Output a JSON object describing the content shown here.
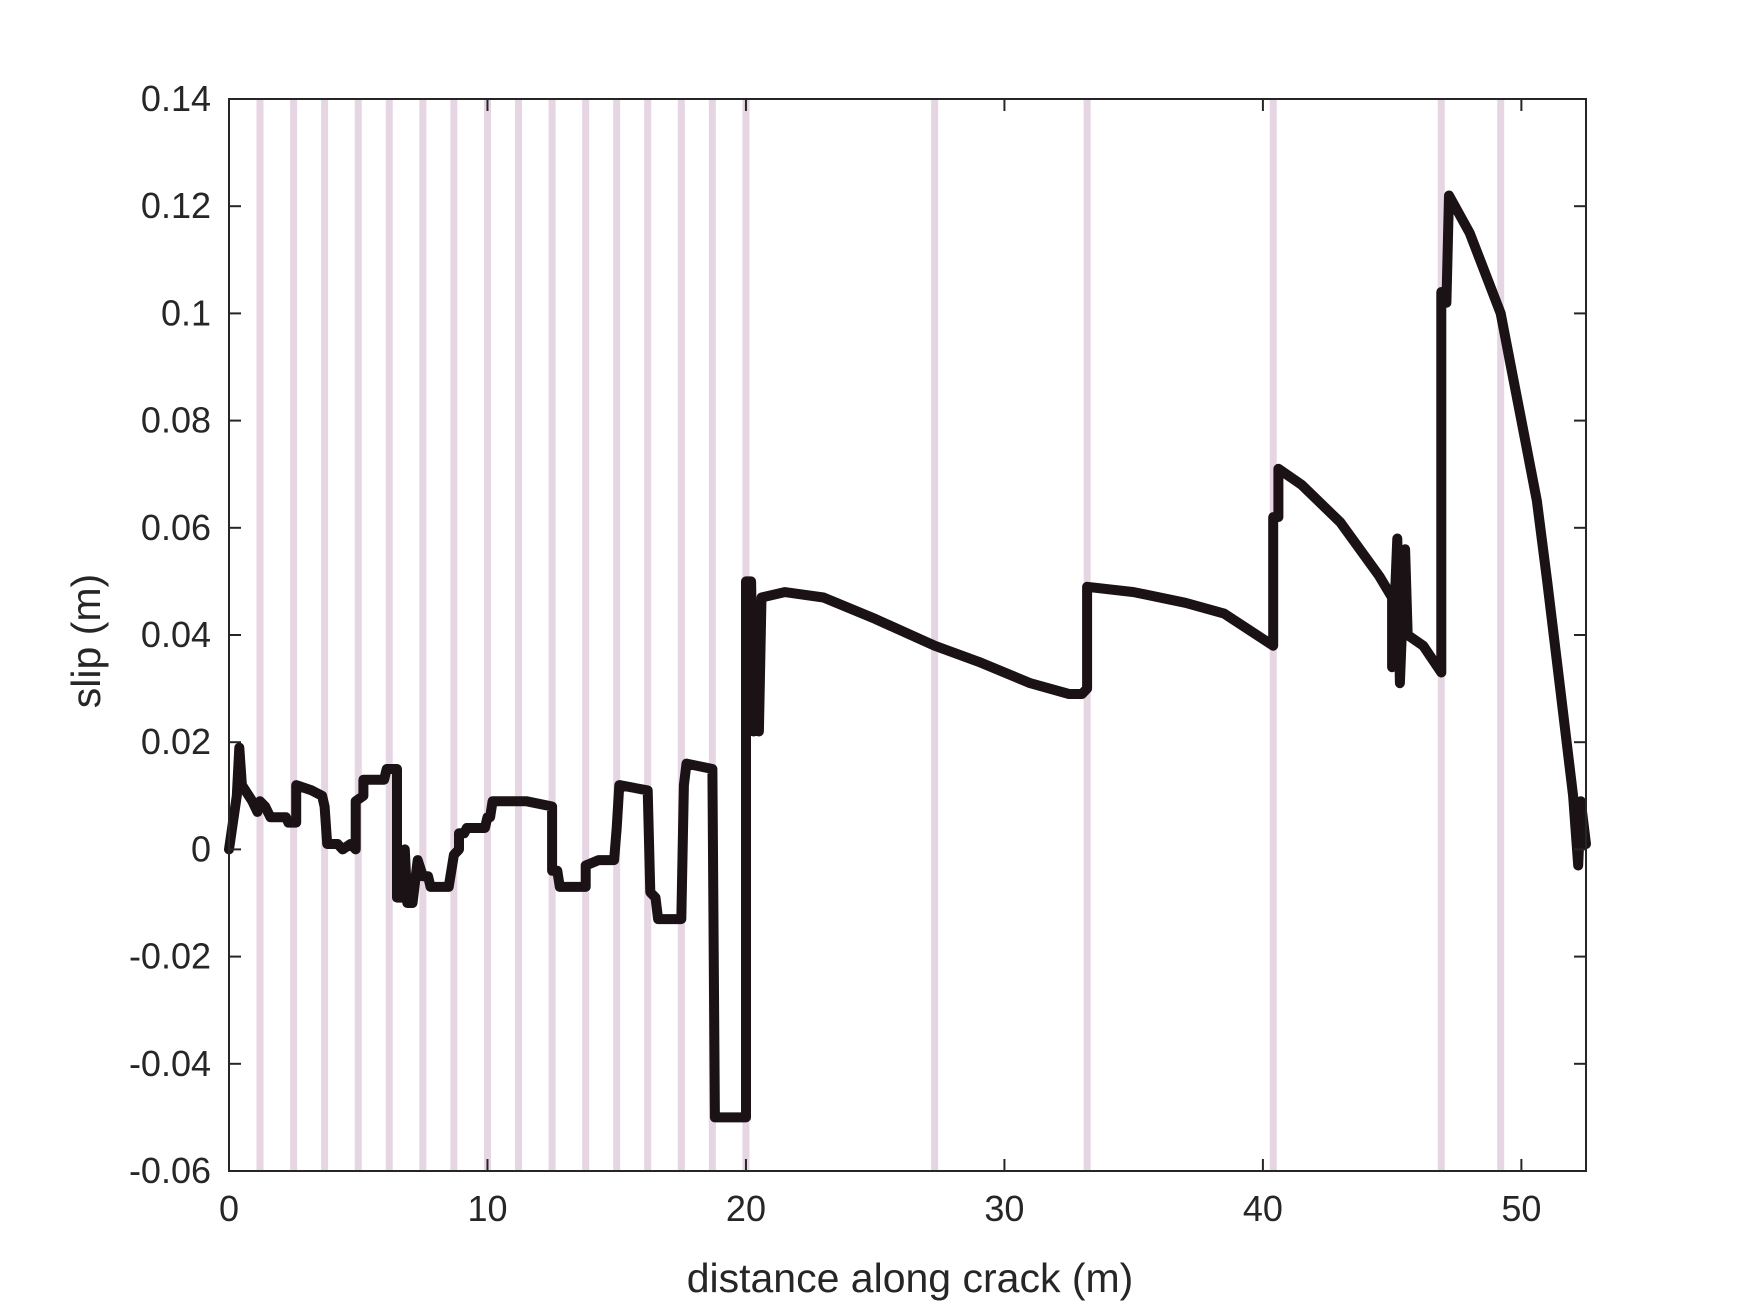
{
  "chart_data": {
    "type": "line",
    "title": "",
    "xlabel": "distance along crack (m)",
    "ylabel": "slip (m)",
    "xlim": [
      0,
      52.5
    ],
    "ylim": [
      -0.06,
      0.14
    ],
    "x_ticks": [
      0,
      10,
      20,
      30,
      40,
      50
    ],
    "x_tick_labels": [
      "0",
      "10",
      "20",
      "30",
      "40",
      "50"
    ],
    "y_ticks": [
      -0.06,
      -0.04,
      -0.02,
      0,
      0.02,
      0.04,
      0.06,
      0.08,
      0.1,
      0.12,
      0.14
    ],
    "y_tick_labels": [
      "-0.06",
      "-0.04",
      "-0.02",
      "0",
      "0.02",
      "0.04",
      "0.06",
      "0.08",
      "0.1",
      "0.12",
      "0.14"
    ],
    "grid": false,
    "legend": "none",
    "colors": {
      "line": "#1a1214",
      "vertical_markers": "#e6d5e2",
      "axes": "#262626"
    },
    "vertical_markers_x": [
      1.2,
      2.5,
      3.7,
      5.0,
      6.2,
      7.5,
      8.7,
      10.0,
      11.2,
      12.5,
      13.8,
      15.0,
      16.2,
      17.5,
      18.7,
      20.0,
      27.3,
      33.2,
      40.4,
      46.9,
      49.2
    ],
    "series": [
      {
        "points": [
          [
            0.0,
            0.0
          ],
          [
            0.3,
            0.01
          ],
          [
            0.4,
            0.019
          ],
          [
            0.5,
            0.012
          ],
          [
            0.9,
            0.009
          ],
          [
            1.1,
            0.007
          ],
          [
            1.2,
            0.009
          ],
          [
            1.4,
            0.008
          ],
          [
            1.6,
            0.006
          ],
          [
            2.2,
            0.006
          ],
          [
            2.3,
            0.005
          ],
          [
            2.6,
            0.005
          ],
          [
            2.6,
            0.012
          ],
          [
            3.2,
            0.011
          ],
          [
            3.6,
            0.01
          ],
          [
            3.7,
            0.008
          ],
          [
            3.8,
            0.001
          ],
          [
            4.2,
            0.001
          ],
          [
            4.4,
            0.0
          ],
          [
            4.7,
            0.001
          ],
          [
            4.9,
            0.0
          ],
          [
            4.9,
            0.009
          ],
          [
            5.2,
            0.01
          ],
          [
            5.2,
            0.013
          ],
          [
            6.0,
            0.013
          ],
          [
            6.1,
            0.015
          ],
          [
            6.5,
            0.015
          ],
          [
            6.5,
            -0.009
          ],
          [
            6.7,
            -0.009
          ],
          [
            6.8,
            0.0
          ],
          [
            6.9,
            -0.01
          ],
          [
            7.1,
            -0.01
          ],
          [
            7.3,
            -0.002
          ],
          [
            7.5,
            -0.005
          ],
          [
            7.7,
            -0.005
          ],
          [
            7.8,
            -0.007
          ],
          [
            8.5,
            -0.007
          ],
          [
            8.7,
            -0.001
          ],
          [
            8.9,
            0.0
          ],
          [
            8.9,
            0.003
          ],
          [
            9.1,
            0.003
          ],
          [
            9.2,
            0.004
          ],
          [
            9.9,
            0.004
          ],
          [
            10.0,
            0.006
          ],
          [
            10.1,
            0.006
          ],
          [
            10.2,
            0.009
          ],
          [
            11.5,
            0.009
          ],
          [
            12.5,
            0.008
          ],
          [
            12.5,
            -0.004
          ],
          [
            12.7,
            -0.004
          ],
          [
            12.8,
            -0.007
          ],
          [
            13.8,
            -0.007
          ],
          [
            13.8,
            -0.003
          ],
          [
            14.3,
            -0.002
          ],
          [
            14.9,
            -0.002
          ],
          [
            15.0,
            0.004
          ],
          [
            15.1,
            0.012
          ],
          [
            16.2,
            0.011
          ],
          [
            16.3,
            -0.008
          ],
          [
            16.5,
            -0.009
          ],
          [
            16.6,
            -0.013
          ],
          [
            17.5,
            -0.013
          ],
          [
            17.6,
            0.012
          ],
          [
            17.7,
            0.016
          ],
          [
            18.7,
            0.015
          ],
          [
            18.8,
            -0.05
          ],
          [
            19.8,
            -0.05
          ],
          [
            20.0,
            -0.05
          ],
          [
            20.0,
            0.05
          ],
          [
            20.2,
            0.05
          ],
          [
            20.3,
            0.022
          ],
          [
            20.4,
            0.04
          ],
          [
            20.5,
            0.022
          ],
          [
            20.6,
            0.047
          ],
          [
            21.5,
            0.048
          ],
          [
            23.0,
            0.047
          ],
          [
            25.0,
            0.043
          ],
          [
            27.3,
            0.038
          ],
          [
            29.0,
            0.035
          ],
          [
            31.0,
            0.031
          ],
          [
            32.5,
            0.029
          ],
          [
            33.0,
            0.029
          ],
          [
            33.2,
            0.03
          ],
          [
            33.2,
            0.049
          ],
          [
            35.0,
            0.048
          ],
          [
            37.0,
            0.046
          ],
          [
            38.5,
            0.044
          ],
          [
            40.4,
            0.038
          ],
          [
            40.4,
            0.062
          ],
          [
            40.6,
            0.062
          ],
          [
            40.6,
            0.071
          ],
          [
            41.5,
            0.068
          ],
          [
            43.0,
            0.061
          ],
          [
            44.5,
            0.051
          ],
          [
            45.0,
            0.047
          ],
          [
            45.0,
            0.034
          ],
          [
            45.2,
            0.058
          ],
          [
            45.3,
            0.031
          ],
          [
            45.5,
            0.056
          ],
          [
            45.6,
            0.04
          ],
          [
            46.2,
            0.038
          ],
          [
            46.9,
            0.033
          ],
          [
            46.9,
            0.104
          ],
          [
            47.1,
            0.102
          ],
          [
            47.2,
            0.122
          ],
          [
            48.0,
            0.115
          ],
          [
            49.2,
            0.1
          ],
          [
            49.6,
            0.09
          ],
          [
            50.0,
            0.08
          ],
          [
            50.6,
            0.065
          ],
          [
            51.0,
            0.05
          ],
          [
            51.5,
            0.03
          ],
          [
            52.0,
            0.01
          ],
          [
            52.2,
            -0.003
          ],
          [
            52.3,
            0.009
          ],
          [
            52.5,
            0.001
          ]
        ]
      }
    ]
  }
}
